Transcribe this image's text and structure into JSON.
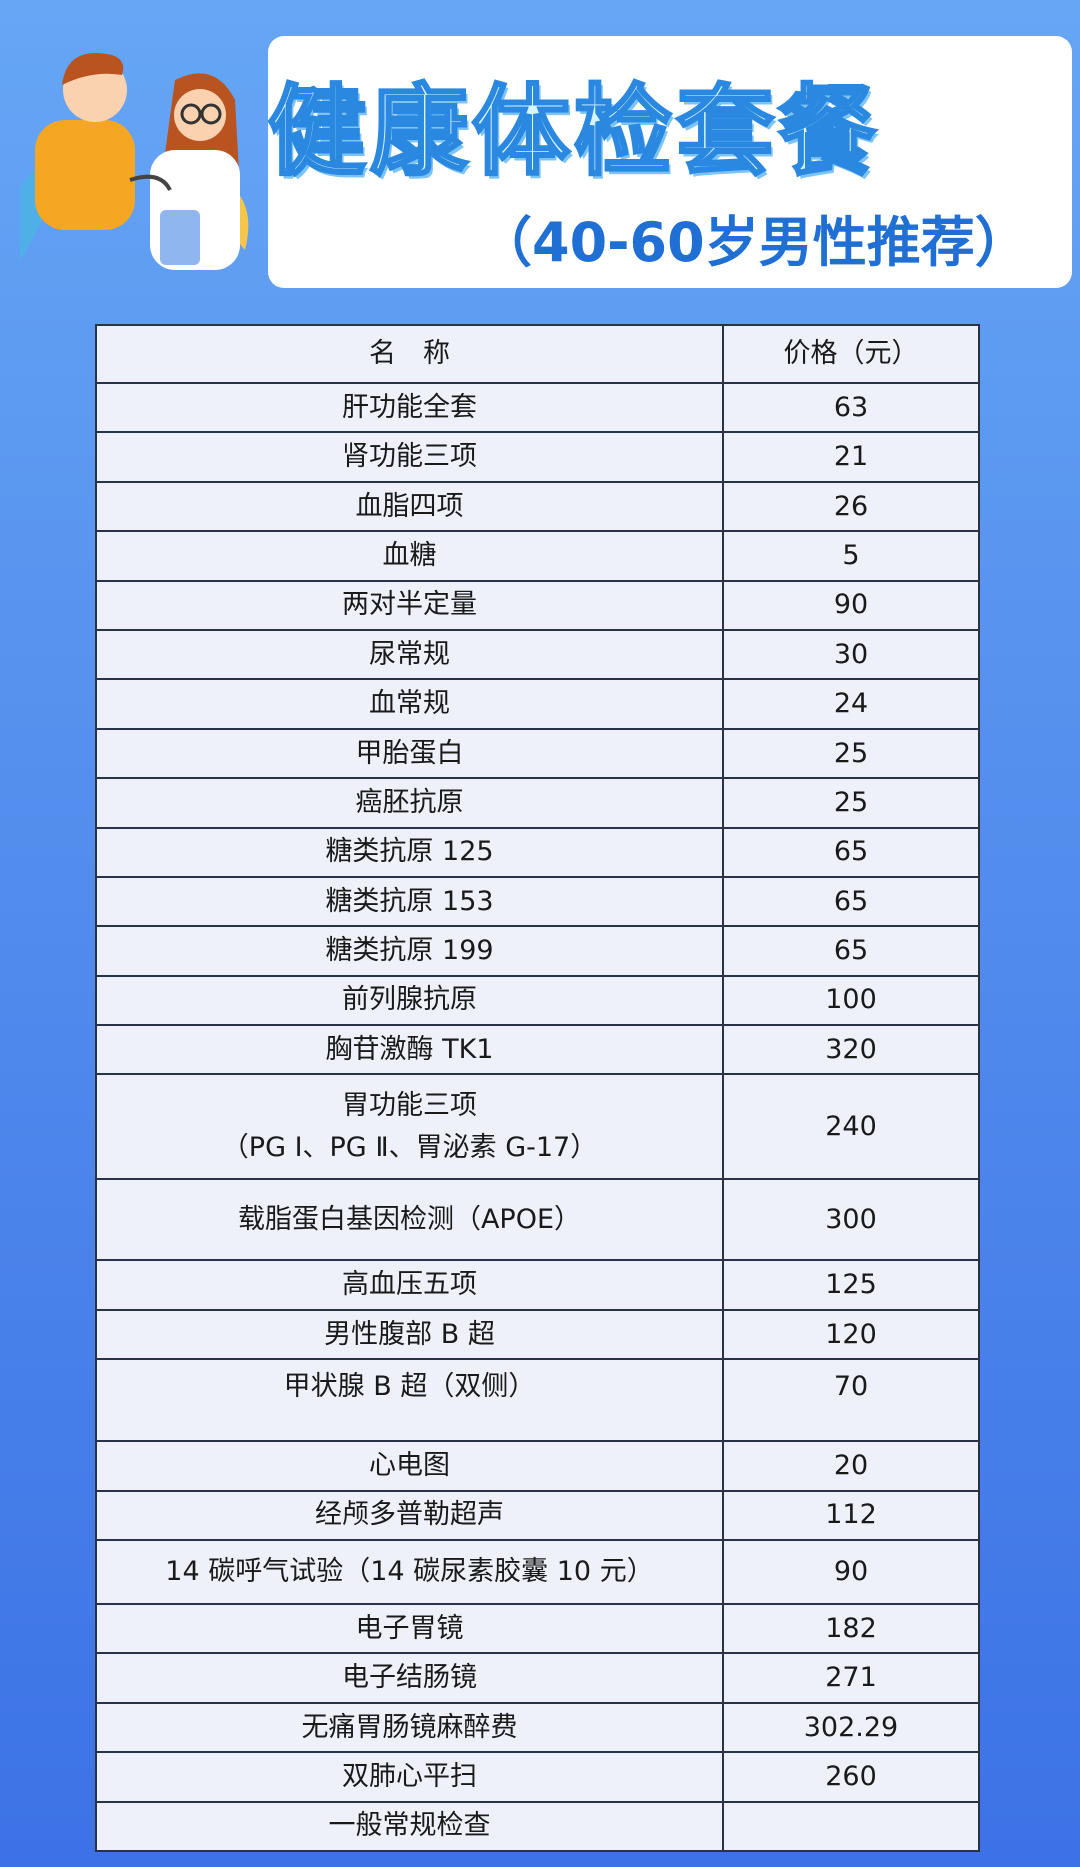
{
  "header": {
    "title": "健康体检套餐",
    "subtitle": "（40-60岁男性推荐）"
  },
  "table": {
    "columns": [
      "名　称",
      "价格（元）"
    ],
    "rows": [
      {
        "name": "肝功能全套",
        "price": "63"
      },
      {
        "name": "肾功能三项",
        "price": "21"
      },
      {
        "name": "血脂四项",
        "price": "26"
      },
      {
        "name": "血糖",
        "price": "5"
      },
      {
        "name": "两对半定量",
        "price": "90"
      },
      {
        "name": "尿常规",
        "price": "30"
      },
      {
        "name": "血常规",
        "price": "24"
      },
      {
        "name": "甲胎蛋白",
        "price": "25"
      },
      {
        "name": "癌胚抗原",
        "price": "25"
      },
      {
        "name": "糖类抗原 125",
        "price": "65"
      },
      {
        "name": "糖类抗原 153",
        "price": "65"
      },
      {
        "name": "糖类抗原 199",
        "price": "65"
      },
      {
        "name": "前列腺抗原",
        "price": "100"
      },
      {
        "name": "胸苷激酶 TK1",
        "price": "320"
      },
      {
        "name": "胃功能三项",
        "name2": "（PG Ⅰ、PG Ⅱ、胃泌素 G-17）",
        "price": "240"
      },
      {
        "name": "载脂蛋白基因检测（APOE）",
        "price": "300"
      },
      {
        "name": "高血压五项",
        "price": "125"
      },
      {
        "name": "男性腹部 B 超",
        "price": "120"
      },
      {
        "name": "甲状腺 B 超（双侧）",
        "price": "70"
      },
      {
        "name": "心电图",
        "price": "20"
      },
      {
        "name": "经颅多普勒超声",
        "price": "112"
      },
      {
        "name": "14 碳呼气试验（14 碳尿素胶囊 10 元）",
        "price": "90"
      },
      {
        "name": "电子胃镜",
        "price": "182"
      },
      {
        "name": "电子结肠镜",
        "price": "271"
      },
      {
        "name": "无痛胃肠镜麻醉费",
        "price": "302.29"
      },
      {
        "name": "双肺心平扫",
        "price": "260"
      },
      {
        "name": "一般常规检查",
        "price": ""
      }
    ]
  }
}
